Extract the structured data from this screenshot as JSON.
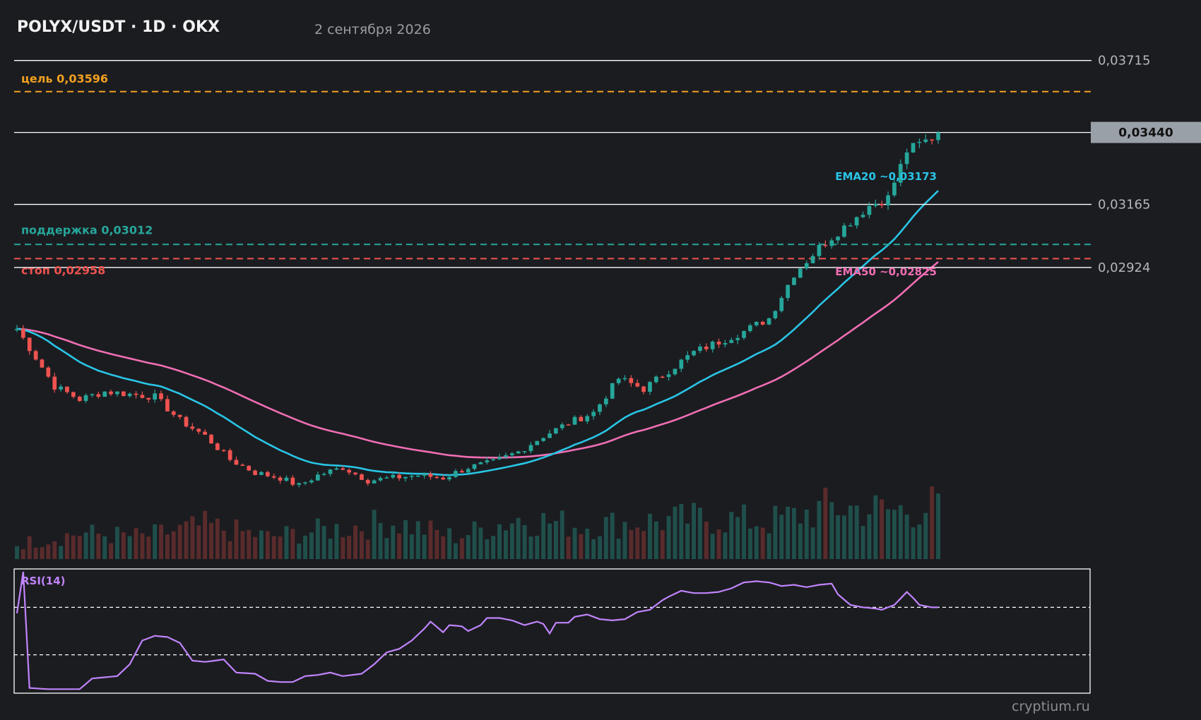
{
  "header": {
    "title": "POLYX/USDT · 1D · OKX",
    "date": "2 сентября 2026"
  },
  "watermark": "cryptium.ru",
  "colors": {
    "background": "#1b1c20",
    "up": "#26a69a",
    "down": "#ef5350",
    "ema20": "#29c5e6",
    "ema50": "#f06eb4",
    "target": "#f0a020",
    "support": "#26a69a",
    "stop": "#ef5350",
    "rsi": "#c084fc",
    "level": "#ffffff",
    "price_tag_bg": "#9aa0a8"
  },
  "chart_data": {
    "type": "candlestick",
    "price_axis": {
      "ylim": [
        0.0195,
        0.0376
      ],
      "tick_labels": [
        "0,03715",
        "0,03165",
        "0,02924"
      ],
      "tick_values": [
        0.03715,
        0.03165,
        0.02924
      ]
    },
    "current_price": {
      "value": 0.0344,
      "label": "0,03440"
    },
    "levels": [
      {
        "name": "target",
        "value": 0.03596,
        "label": "цель 0,03596",
        "color": "#f0a020"
      },
      {
        "name": "support",
        "value": 0.03012,
        "label": "поддержка 0,03012",
        "color": "#26a69a"
      },
      {
        "name": "stop",
        "value": 0.02958,
        "label": "стоп 0,02958",
        "color": "#ef5350"
      }
    ],
    "ema_labels": [
      {
        "name": "EMA20",
        "label": "EMA20 ~0,03173",
        "value": 0.03173,
        "color": "#29c5e6"
      },
      {
        "name": "EMA50",
        "label": "EMA50 ~0,02825",
        "value": 0.02825,
        "color": "#f06eb4"
      }
    ],
    "price_anchors": [
      [
        0,
        0.0269
      ],
      [
        3,
        0.0258
      ],
      [
        6,
        0.0247
      ],
      [
        10,
        0.0242
      ],
      [
        14,
        0.0245
      ],
      [
        18,
        0.0244
      ],
      [
        22,
        0.0243
      ],
      [
        26,
        0.0234
      ],
      [
        30,
        0.0228
      ],
      [
        34,
        0.0219
      ],
      [
        38,
        0.0214
      ],
      [
        42,
        0.0212
      ],
      [
        45,
        0.0209
      ],
      [
        48,
        0.0213
      ],
      [
        52,
        0.0216
      ],
      [
        56,
        0.0211
      ],
      [
        60,
        0.0212
      ],
      [
        64,
        0.0213
      ],
      [
        68,
        0.0212
      ],
      [
        72,
        0.0216
      ],
      [
        76,
        0.0218
      ],
      [
        80,
        0.0222
      ],
      [
        84,
        0.0228
      ],
      [
        88,
        0.0233
      ],
      [
        92,
        0.0237
      ],
      [
        96,
        0.025
      ],
      [
        100,
        0.0246
      ],
      [
        104,
        0.0253
      ],
      [
        108,
        0.026
      ],
      [
        112,
        0.0264
      ],
      [
        116,
        0.0268
      ],
      [
        120,
        0.0273
      ],
      [
        124,
        0.029
      ],
      [
        128,
        0.03
      ],
      [
        132,
        0.0308
      ],
      [
        136,
        0.0316
      ],
      [
        139,
        0.0319
      ],
      [
        142,
        0.0337
      ],
      [
        146,
        0.0342
      ],
      [
        147,
        0.0344
      ]
    ],
    "rsi": {
      "label": "RSI(14)",
      "upper": 70,
      "lower": 30,
      "anchors": [
        [
          0,
          65
        ],
        [
          1,
          100
        ],
        [
          2,
          2
        ],
        [
          5,
          1
        ],
        [
          10,
          1
        ],
        [
          12,
          10
        ],
        [
          16,
          12
        ],
        [
          18,
          22
        ],
        [
          20,
          42
        ],
        [
          22,
          46
        ],
        [
          24,
          45
        ],
        [
          26,
          40
        ],
        [
          28,
          25
        ],
        [
          30,
          24
        ],
        [
          33,
          26
        ],
        [
          35,
          15
        ],
        [
          38,
          14
        ],
        [
          40,
          8
        ],
        [
          42,
          7
        ],
        [
          44,
          7
        ],
        [
          46,
          12
        ],
        [
          48,
          13
        ],
        [
          50,
          15
        ],
        [
          52,
          12
        ],
        [
          55,
          14
        ],
        [
          57,
          22
        ],
        [
          59,
          32
        ],
        [
          61,
          35
        ],
        [
          63,
          42
        ],
        [
          65,
          52
        ],
        [
          66,
          58
        ],
        [
          68,
          49
        ],
        [
          69,
          55
        ],
        [
          71,
          54
        ],
        [
          72,
          50
        ],
        [
          74,
          55
        ],
        [
          75,
          61
        ],
        [
          77,
          61
        ],
        [
          79,
          59
        ],
        [
          81,
          55
        ],
        [
          83,
          58
        ],
        [
          84,
          56
        ],
        [
          85,
          48
        ],
        [
          86,
          57
        ],
        [
          88,
          57
        ],
        [
          89,
          62
        ],
        [
          91,
          64
        ],
        [
          93,
          60
        ],
        [
          95,
          59
        ],
        [
          97,
          60
        ],
        [
          99,
          66
        ],
        [
          101,
          68
        ],
        [
          103,
          76
        ],
        [
          104,
          79
        ],
        [
          106,
          84
        ],
        [
          108,
          82
        ],
        [
          110,
          82
        ],
        [
          112,
          83
        ],
        [
          114,
          86
        ],
        [
          116,
          91
        ],
        [
          118,
          92
        ],
        [
          120,
          91
        ],
        [
          122,
          88
        ],
        [
          124,
          89
        ],
        [
          126,
          87
        ],
        [
          128,
          89
        ],
        [
          130,
          90
        ],
        [
          131,
          81
        ],
        [
          133,
          72
        ],
        [
          135,
          70
        ],
        [
          137,
          69
        ],
        [
          138,
          68
        ],
        [
          140,
          72
        ],
        [
          142,
          83
        ],
        [
          143,
          78
        ],
        [
          144,
          72
        ],
        [
          146,
          70
        ],
        [
          147,
          70
        ]
      ]
    },
    "volume_anchors": [
      [
        0,
        20
      ],
      [
        10,
        35
      ],
      [
        20,
        30
      ],
      [
        30,
        45
      ],
      [
        40,
        30
      ],
      [
        50,
        40
      ],
      [
        60,
        50
      ],
      [
        70,
        30
      ],
      [
        80,
        55
      ],
      [
        90,
        45
      ],
      [
        100,
        50
      ],
      [
        110,
        55
      ],
      [
        120,
        50
      ],
      [
        130,
        70
      ],
      [
        140,
        65
      ],
      [
        147,
        72
      ]
    ]
  }
}
